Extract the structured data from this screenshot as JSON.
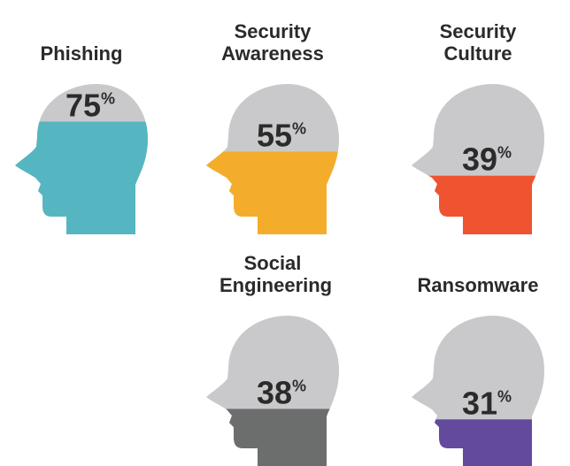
{
  "chart_data": {
    "type": "head-fill",
    "categories": [
      "Phishing",
      "Security Awareness",
      "Security Culture",
      "Social Engineering",
      "Ransomware"
    ],
    "values": [
      75,
      55,
      39,
      38,
      31
    ],
    "value_labels": [
      "75%",
      "55%",
      "39%",
      "38%",
      "31%"
    ],
    "colors": [
      "#55b6c1",
      "#f4ad2a",
      "#ef5330",
      "#6b6e6d",
      "#634a9c"
    ],
    "background_color": "#c9c9cb"
  }
}
